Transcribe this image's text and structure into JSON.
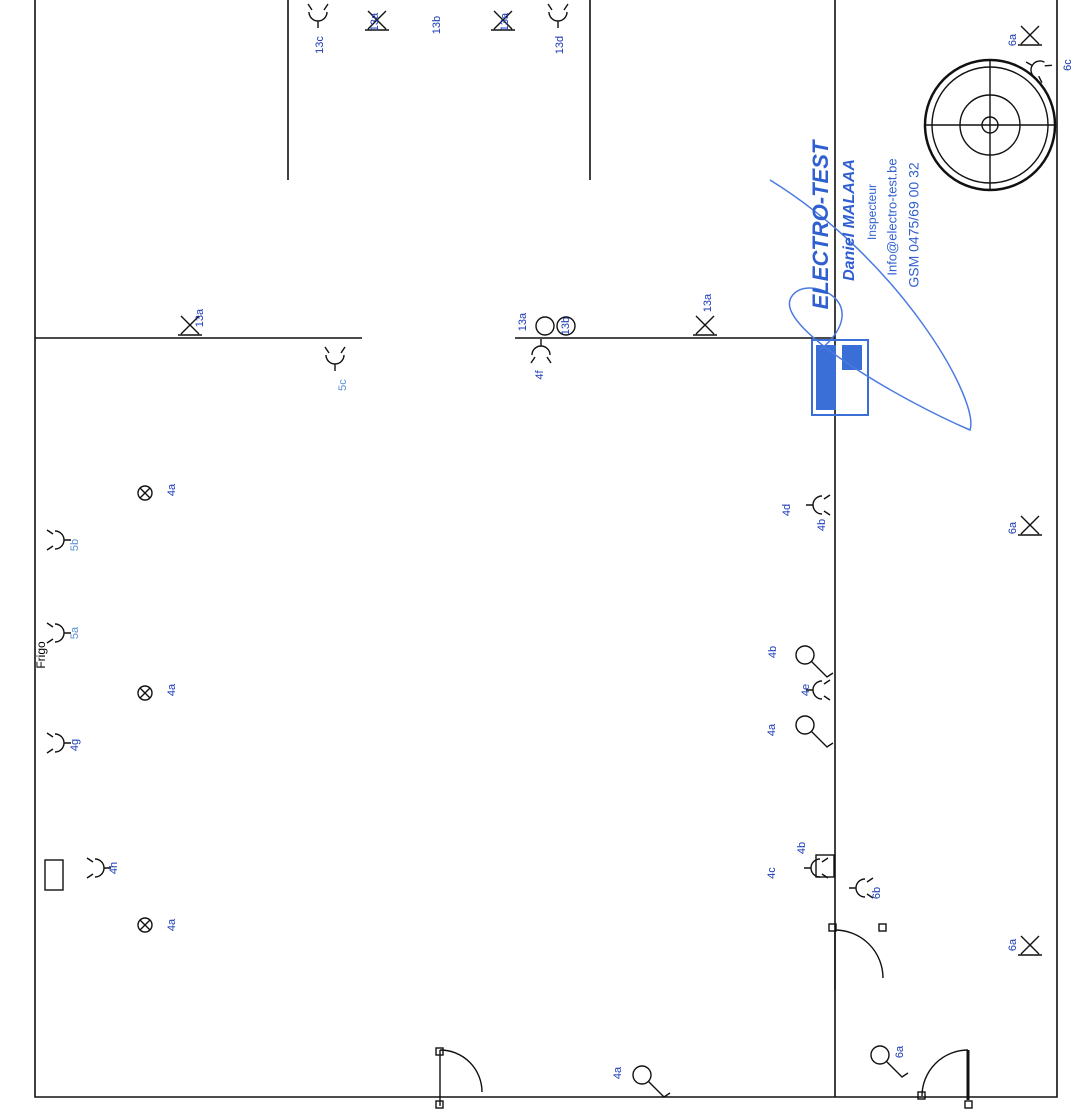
{
  "room_labels": [
    "Frigo"
  ],
  "circuits": [
    "13c",
    "13a",
    "13b",
    "13a",
    "13d",
    "6a",
    "6c",
    "13a",
    "5c",
    "13a",
    "13b",
    "13a",
    "4f",
    "4a",
    "5b",
    "4d",
    "4b",
    "6a",
    "5a",
    "4b",
    "4a",
    "4e",
    "4a",
    "4g",
    "4h",
    "4c",
    "4b",
    "6b",
    "4a",
    "6a",
    "6a",
    "4a"
  ],
  "stamp": {
    "company": "ELECTRO-TEST",
    "name": "Daniel MALAAA",
    "role": "Inspecteur",
    "email": "Info@electro-test.be",
    "phone": "GSM 0475/69 00 32"
  }
}
